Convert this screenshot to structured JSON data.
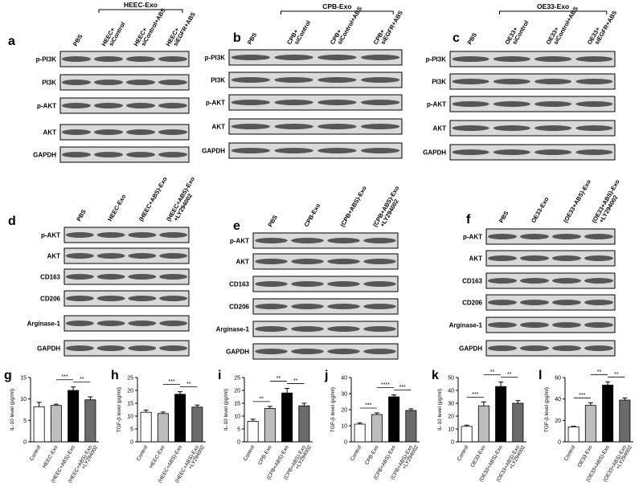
{
  "blots": [
    {
      "panel": "a",
      "group": "HEEC-Exo",
      "lanes": [
        [
          "PBS"
        ],
        [
          "HEEC+",
          "siControl"
        ],
        [
          "HEEC+",
          "siControl+ABS"
        ],
        [
          "HEEC+",
          "siEGFR+ABS"
        ]
      ],
      "rows": [
        "p-PI3K",
        "PI3K",
        "p-AKT",
        "AKT",
        "GAPDH"
      ]
    },
    {
      "panel": "b",
      "group": "CPB-Exo",
      "lanes": [
        [
          "PBS"
        ],
        [
          "CPB+",
          "siControl"
        ],
        [
          "CPB+",
          "siControl+ABS"
        ],
        [
          "CPB+",
          "siEGFR+ABS"
        ]
      ],
      "rows": [
        "p-PI3K",
        "PI3K",
        "p-AKT",
        "AKT",
        "GAPDH"
      ]
    },
    {
      "panel": "c",
      "group": "OE33-Exo",
      "lanes": [
        [
          "PBS"
        ],
        [
          "OE33+",
          "siControl"
        ],
        [
          "OE33+",
          "siControl+ABS"
        ],
        [
          "OE33+",
          "siEGFR+ABS"
        ]
      ],
      "rows": [
        "p-PI3K",
        "PI3K",
        "p-AKT",
        "AKT",
        "GAPDH"
      ]
    },
    {
      "panel": "d",
      "lanes": [
        [
          "PBS"
        ],
        [
          "HEEC-Exo"
        ],
        [
          "(HEEC+ABS)-Exo"
        ],
        [
          "(HEEC+ABS)-Exo",
          "+LY294002"
        ]
      ],
      "rows": [
        "p-AKT",
        "AKT",
        "CD163",
        "CD206",
        "Arginase-1",
        "GAPDH"
      ]
    },
    {
      "panel": "e",
      "lanes": [
        [
          "PBS"
        ],
        [
          "CPB-Exo"
        ],
        [
          "(CPB+ABS)-Exo"
        ],
        [
          "(CPB+ABS)-Exo",
          "+LY294002"
        ]
      ],
      "rows": [
        "p-AKT",
        "AKT",
        "CD163",
        "CD206",
        "Arginase-1",
        "GAPDH"
      ]
    },
    {
      "panel": "f",
      "lanes": [
        [
          "PBS"
        ],
        [
          "OE33-Exo"
        ],
        [
          "(OE33+ABS)-Exo"
        ],
        [
          "(OE33+ABS)-Exo",
          "+LY294002"
        ]
      ],
      "rows": [
        "p-AKT",
        "AKT",
        "CD163",
        "CD206",
        "Arginase-1",
        "GAPDH"
      ]
    }
  ],
  "charts": [
    {
      "panel": "g",
      "type": "bar",
      "ylabel": "IL-10 level (pg/ml)",
      "categories": [
        [
          "Control"
        ],
        [
          "HEEC-Exo"
        ],
        [
          "(HEEC+ABS)-Exo"
        ],
        [
          "(HEEC+ABS)-Exo",
          "+LY294002"
        ]
      ],
      "values": [
        8.2,
        8.5,
        12,
        9.8
      ],
      "errors": [
        1,
        0.3,
        0.8,
        0.7
      ],
      "colors": [
        "#ffffff",
        "#bdbdbd",
        "#000000",
        "#6b6b6b"
      ],
      "ylim": [
        0,
        15
      ],
      "yticks": [
        0,
        5,
        10,
        15
      ],
      "significance": [
        null,
        "***",
        "**"
      ]
    },
    {
      "panel": "h",
      "type": "bar",
      "ylabel": "TGF-β level (pg/ml)",
      "categories": [
        [
          "Control"
        ],
        [
          "HEEC-Exo"
        ],
        [
          "(HEEC+ABS)-Exo"
        ],
        [
          "(HEEC+ABS)-Exo",
          "+LY294002"
        ]
      ],
      "values": [
        11.5,
        11,
        18.5,
        13.5
      ],
      "errors": [
        0.8,
        0.6,
        1,
        0.8
      ],
      "colors": [
        "#ffffff",
        "#bdbdbd",
        "#000000",
        "#6b6b6b"
      ],
      "ylim": [
        0,
        25
      ],
      "yticks": [
        0,
        5,
        10,
        15,
        20,
        25
      ],
      "significance": [
        null,
        "***",
        "**"
      ]
    },
    {
      "panel": "i",
      "type": "bar",
      "ylabel": "IL-10 level (pg/ml)",
      "categories": [
        [
          "Control"
        ],
        [
          "CPB-Exo"
        ],
        [
          "(CPB+ABS)-Exo"
        ],
        [
          "(CPB+ABS)-Exo",
          "+LY294002"
        ]
      ],
      "values": [
        8,
        13,
        19,
        14
      ],
      "errors": [
        0.8,
        0.8,
        1.8,
        1
      ],
      "colors": [
        "#ffffff",
        "#bdbdbd",
        "#000000",
        "#6b6b6b"
      ],
      "ylim": [
        0,
        25
      ],
      "yticks": [
        0,
        5,
        10,
        15,
        20,
        25
      ],
      "significance": [
        "**",
        "**",
        "**"
      ]
    },
    {
      "panel": "j",
      "type": "bar",
      "ylabel": "TGF-β level (pg/ml)",
      "categories": [
        [
          "Control"
        ],
        [
          "CPB-Exo"
        ],
        [
          "(CPB+ABS)-Exo"
        ],
        [
          "(CPB+ABS)-Exo",
          "+LY294002"
        ]
      ],
      "values": [
        11,
        17,
        28,
        19.5
      ],
      "errors": [
        0.8,
        1,
        1.2,
        1
      ],
      "colors": [
        "#ffffff",
        "#bdbdbd",
        "#000000",
        "#6b6b6b"
      ],
      "ylim": [
        0,
        40
      ],
      "yticks": [
        0,
        10,
        20,
        30,
        40
      ],
      "significance": [
        "***",
        "****",
        "***"
      ]
    },
    {
      "panel": "k",
      "type": "bar",
      "ylabel": "IL-10 level (pg/ml)",
      "categories": [
        [
          "Control"
        ],
        [
          "OE33-Exo"
        ],
        [
          "(OE33+ABS)-Exo"
        ],
        [
          "(OE33+ABS)-Exo",
          "+LY294002"
        ]
      ],
      "values": [
        12,
        28,
        43,
        30
      ],
      "errors": [
        1,
        3,
        3.5,
        2
      ],
      "colors": [
        "#ffffff",
        "#bdbdbd",
        "#000000",
        "#6b6b6b"
      ],
      "ylim": [
        0,
        50
      ],
      "yticks": [
        0,
        10,
        20,
        30,
        40,
        50
      ],
      "significance": [
        "***",
        "**",
        "**"
      ]
    },
    {
      "panel": "l",
      "type": "bar",
      "ylabel": "TGF-β level (pg/ml)",
      "categories": [
        [
          "Control"
        ],
        [
          "OE33-Exo"
        ],
        [
          "(OE33+ABS)-Exo"
        ],
        [
          "(OE33+ABS)-Exo",
          "+LY294002"
        ]
      ],
      "values": [
        14,
        34,
        53,
        39
      ],
      "errors": [
        0.5,
        2.5,
        3,
        2
      ],
      "colors": [
        "#ffffff",
        "#bdbdbd",
        "#000000",
        "#6b6b6b"
      ],
      "ylim": [
        0,
        60
      ],
      "yticks": [
        0,
        20,
        40,
        60
      ],
      "significance": [
        "***",
        "**",
        "**"
      ]
    }
  ]
}
